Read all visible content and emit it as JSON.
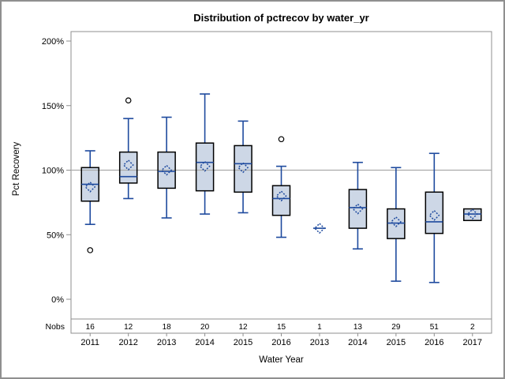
{
  "colors": {
    "background": "#ffffff",
    "box_fill": "#cdd7e6",
    "box_border": "#000000",
    "line": "#1e4a9e",
    "outlier": "#000000",
    "refline": "#aaaaaa",
    "frame": "#8f8f8f",
    "text": "#000000"
  },
  "chart_data": {
    "type": "boxplot",
    "title": "Distribution of pctrecov by water_yr",
    "xlabel": "Water Year",
    "ylabel": "Pct Recovery",
    "y_ticks_percent": [
      0,
      50,
      100,
      150,
      200
    ],
    "y_tick_suffix": "%",
    "ylim": [
      -15,
      207
    ],
    "refline": 100,
    "grid": "off",
    "legend": "none",
    "nobs_row_label": "Nobs",
    "boxes": [
      {
        "category": "2011",
        "nobs": 16,
        "whisker_low": 58,
        "q1": 76,
        "median": 89,
        "q3": 102,
        "whisker_high": 115,
        "mean": 87,
        "outliers": [
          38
        ]
      },
      {
        "category": "2012",
        "nobs": 12,
        "whisker_low": 78,
        "q1": 90,
        "median": 95,
        "q3": 114,
        "whisker_high": 140,
        "mean": 104,
        "outliers": [
          154
        ]
      },
      {
        "category": "2013",
        "nobs": 18,
        "whisker_low": 63,
        "q1": 86,
        "median": 99,
        "q3": 114,
        "whisker_high": 141,
        "mean": 100,
        "outliers": []
      },
      {
        "category": "2014",
        "nobs": 20,
        "whisker_low": 66,
        "q1": 84,
        "median": 106,
        "q3": 121,
        "whisker_high": 159,
        "mean": 103,
        "outliers": []
      },
      {
        "category": "2015",
        "nobs": 12,
        "whisker_low": 67,
        "q1": 83,
        "median": 105,
        "q3": 119,
        "whisker_high": 138,
        "mean": 102,
        "outliers": []
      },
      {
        "category": "2016",
        "nobs": 15,
        "whisker_low": 48,
        "q1": 65,
        "median": 78,
        "q3": 88,
        "whisker_high": 103,
        "mean": 80,
        "outliers": [
          124
        ]
      },
      {
        "category": "2013",
        "nobs": 1,
        "whisker_low": 55,
        "q1": 55,
        "median": 55,
        "q3": 55,
        "whisker_high": 55,
        "mean": 55,
        "outliers": []
      },
      {
        "category": "2014",
        "nobs": 13,
        "whisker_low": 39,
        "q1": 55,
        "median": 71,
        "q3": 85,
        "whisker_high": 106,
        "mean": 70,
        "outliers": []
      },
      {
        "category": "2015",
        "nobs": 29,
        "whisker_low": 14,
        "q1": 47,
        "median": 59,
        "q3": 70,
        "whisker_high": 102,
        "mean": 60,
        "outliers": []
      },
      {
        "category": "2016",
        "nobs": 51,
        "whisker_low": 13,
        "q1": 51,
        "median": 60,
        "q3": 83,
        "whisker_high": 113,
        "mean": 65,
        "outliers": []
      },
      {
        "category": "2017",
        "nobs": 2,
        "whisker_low": 61,
        "q1": 61,
        "median": 66,
        "q3": 70,
        "whisker_high": 70,
        "mean": 66,
        "outliers": []
      }
    ]
  }
}
